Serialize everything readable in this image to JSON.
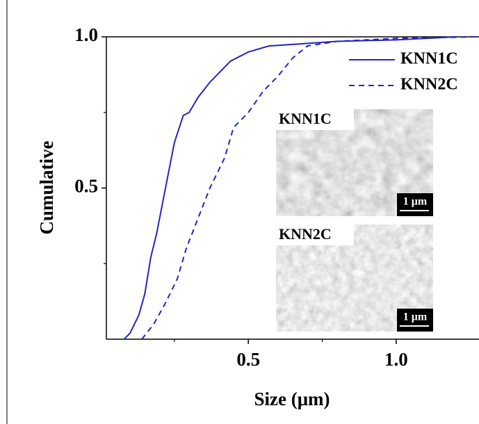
{
  "chart_data": {
    "type": "line",
    "xlabel": "Size (μm)",
    "ylabel": "Cumulative",
    "xlim": [
      0.02,
      1.28
    ],
    "ylim": [
      0,
      1
    ],
    "xticks": [
      0.5,
      {
        "value": 1.0,
        "label": "1.0"
      }
    ],
    "yticks": [
      0.5,
      {
        "value": 1.0,
        "label": "1.0"
      }
    ],
    "x_minor_ticks": [
      0.25,
      0.75
    ],
    "y_minor_ticks": [
      0.25,
      0.75
    ],
    "legend": "upper right",
    "series": [
      {
        "name": "KNN1C",
        "color": "#2424c0",
        "dash": "solid",
        "x": [
          0.08,
          0.1,
          0.13,
          0.15,
          0.17,
          0.19,
          0.21,
          0.23,
          0.25,
          0.28,
          0.3,
          0.33,
          0.37,
          0.4,
          0.44,
          0.5,
          0.57,
          0.65,
          0.8,
          1.0,
          1.2
        ],
        "values": [
          0,
          0.02,
          0.08,
          0.15,
          0.27,
          0.35,
          0.45,
          0.55,
          0.65,
          0.74,
          0.75,
          0.8,
          0.85,
          0.88,
          0.92,
          0.95,
          0.97,
          0.975,
          0.985,
          0.99,
          1.0
        ]
      },
      {
        "name": "KNN2C",
        "color": "#2424c0",
        "dash": "dashed",
        "x": [
          0.14,
          0.18,
          0.22,
          0.26,
          0.29,
          0.33,
          0.37,
          0.42,
          0.45,
          0.5,
          0.55,
          0.6,
          0.65,
          0.7,
          0.8,
          1.0,
          1.27
        ],
        "values": [
          0,
          0.05,
          0.12,
          0.2,
          0.3,
          0.4,
          0.5,
          0.6,
          0.7,
          0.75,
          0.82,
          0.87,
          0.93,
          0.97,
          0.985,
          0.995,
          1.0
        ]
      }
    ],
    "insets": [
      {
        "label": "KNN1C",
        "scale_bar": "1 μm"
      },
      {
        "label": "KNN2C",
        "scale_bar": "1 μm"
      }
    ]
  }
}
